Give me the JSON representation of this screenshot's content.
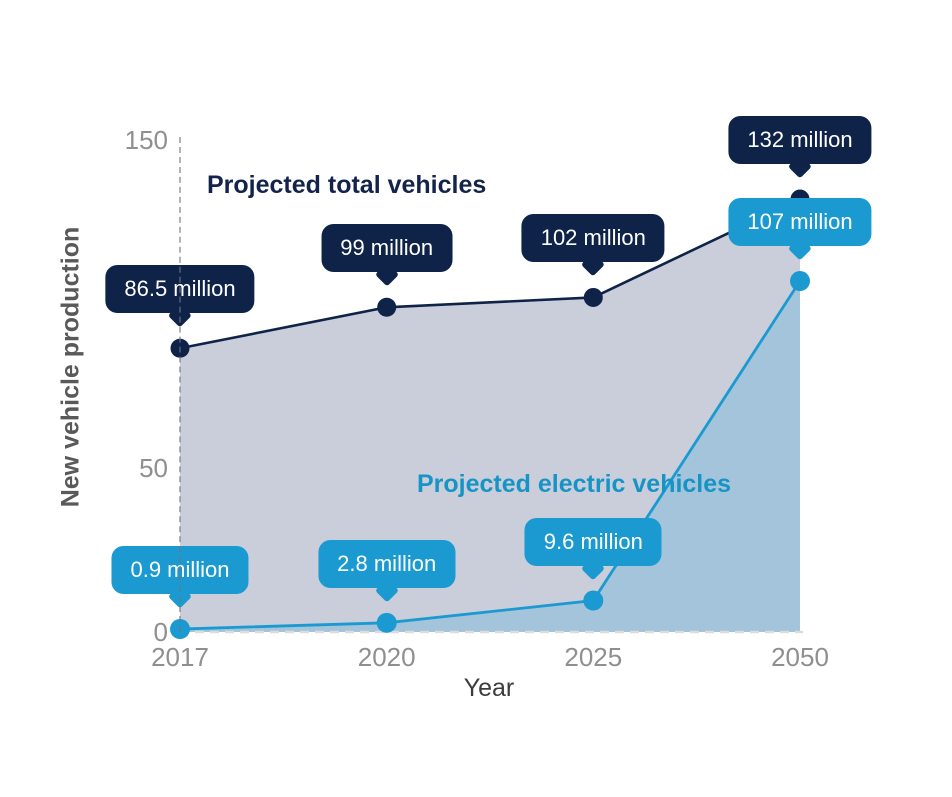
{
  "colors": {
    "total_series": "#0F2349",
    "total_fill": "#CACEDA",
    "total_title_text": "#13234B",
    "ev_series": "#1B9AD1",
    "ev_fill": "#A3C4DA",
    "ev_title_text": "#1794C6",
    "tick_label": "#8F8F8F",
    "x_axis_title_color": "#3C3C3C",
    "y_axis_title_color": "#595959",
    "callout_text": "#FFFFFF",
    "zero_dash_line": "#DCDCDC",
    "guide_dash_line": "#B4B4B4"
  },
  "chart_data": {
    "type": "area",
    "title": "",
    "xlabel": "Year",
    "ylabel": "New vehicle production",
    "categories": [
      "2017",
      "2020",
      "2025",
      "2050"
    ],
    "y_ticks": [
      0,
      50,
      150
    ],
    "ylim": [
      0,
      150
    ],
    "grid": "dashed vertical guide at 2017 and dashed horizontal line at 0",
    "legend_position": "inline text labels inside plot",
    "series": [
      {
        "name": "Projected total vehicles",
        "values": [
          86.5,
          99,
          102,
          132
        ],
        "point_labels": [
          "86.5 million",
          "99 million",
          "102 million",
          "132 million"
        ]
      },
      {
        "name": "Projected electric vehicles",
        "values": [
          0.9,
          2.8,
          9.6,
          107
        ],
        "point_labels": [
          "0.9 million",
          "2.8 million",
          "9.6 million",
          "107 million"
        ]
      }
    ]
  }
}
